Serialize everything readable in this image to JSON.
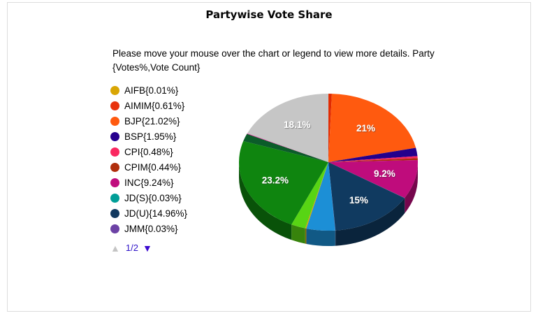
{
  "chart_data": {
    "type": "pie",
    "is_3d": true,
    "title": "Partywise Vote Share",
    "subtitle": "Please move your mouse over the chart or legend to view more details. Party {Votes%,Vote Count}",
    "start_angle": "12-oclock",
    "direction": "clockwise",
    "label_color": "#ffffff",
    "slices": [
      {
        "party": "AIFB",
        "value": 0.01,
        "color": "#d9a604",
        "label": null
      },
      {
        "party": "AIMIM",
        "value": 0.61,
        "color": "#e02a02",
        "label": null
      },
      {
        "party": "BJP",
        "value": 21.02,
        "color": "#ff5a0f",
        "label": "21%"
      },
      {
        "party": "BSP",
        "value": 1.95,
        "color": "#24008c",
        "label": null
      },
      {
        "party": "CPI",
        "value": 0.48,
        "color": "#f82560",
        "label": null
      },
      {
        "party": "CPIM",
        "value": 0.44,
        "color": "#ac2c0a",
        "label": null
      },
      {
        "party": "INC",
        "value": 9.24,
        "color": "#bf0c7c",
        "label": "9.2%"
      },
      {
        "party": "JD(S)",
        "value": 0.03,
        "color": "#009e97",
        "label": null
      },
      {
        "party": "JD(U)",
        "value": 14.96,
        "color": "#103a60",
        "label": "15%"
      },
      {
        "party": "JMM",
        "value": 0.03,
        "color": "#6c42a5",
        "label": null
      },
      {
        "party": null,
        "value": 5.2,
        "color": "#1c8fd6",
        "label": null
      },
      {
        "party": null,
        "value": 0.2,
        "color": "#d8a400",
        "label": null
      },
      {
        "party": null,
        "value": 2.6,
        "color": "#58d414",
        "label": null
      },
      {
        "party": null,
        "value": 23.2,
        "color": "#0f850f",
        "label": "23.2%"
      },
      {
        "party": null,
        "value": 1.8,
        "color": "#0b5c2a",
        "label": null
      },
      {
        "party": null,
        "value": 0.13,
        "color": "#e8189c",
        "label": null
      },
      {
        "party": null,
        "value": 18.1,
        "color": "#c6c6c6",
        "label": "18.1%"
      }
    ]
  },
  "legend": {
    "items": [
      {
        "label": "AIFB{0.01%}",
        "color": "#d9a604"
      },
      {
        "label": "AIMIM{0.61%}",
        "color": "#e8330e"
      },
      {
        "label": "BJP{21.02%}",
        "color": "#ff5a0f"
      },
      {
        "label": "BSP{1.95%}",
        "color": "#26008e"
      },
      {
        "label": "CPI{0.48%}",
        "color": "#fa2860"
      },
      {
        "label": "CPIM{0.44%}",
        "color": "#b02e0c"
      },
      {
        "label": "INC{9.24%}",
        "color": "#c00d7e"
      },
      {
        "label": "JD(S){0.03%}",
        "color": "#009e97"
      },
      {
        "label": "JD(U){14.96%}",
        "color": "#12395f"
      },
      {
        "label": "JMM{0.03%}",
        "color": "#6c42a5"
      }
    ],
    "pagination": {
      "label": "1/2",
      "prev_icon": "▲",
      "next_icon": "▼",
      "prev_enabled": false,
      "next_enabled": true,
      "prev_color": "#c4c4c4",
      "next_color": "#3c0ad0",
      "text_color": "#2d12c8"
    }
  }
}
